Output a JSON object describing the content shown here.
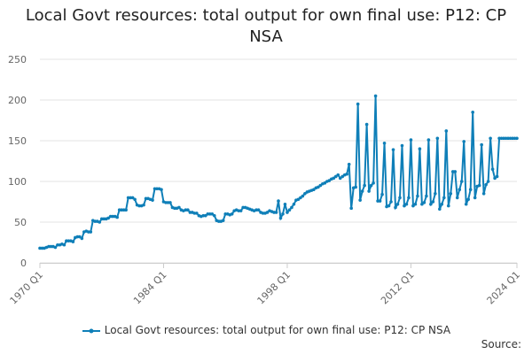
{
  "chart_data": {
    "type": "line",
    "title": "Local Govt resources: total output for own final use: P12: CP NSA",
    "source": "Source:",
    "categories": [
      "1970 Q1",
      null,
      null,
      null,
      null,
      null,
      null,
      null,
      null,
      null,
      null,
      null,
      null,
      null,
      null,
      null,
      null,
      null,
      null,
      null,
      null,
      null,
      null,
      null,
      null,
      null,
      null,
      null,
      null,
      null,
      null,
      null,
      null,
      null,
      null,
      null,
      null,
      null,
      null,
      null,
      null,
      null,
      null,
      null,
      null,
      null,
      null,
      null,
      null,
      null,
      null,
      null,
      null,
      null,
      null,
      null,
      "1984 Q1",
      null,
      null,
      null,
      null,
      null,
      null,
      null,
      null,
      null,
      null,
      null,
      null,
      null,
      null,
      null,
      null,
      null,
      null,
      null,
      null,
      null,
      null,
      null,
      null,
      null,
      null,
      null,
      null,
      null,
      null,
      null,
      null,
      null,
      null,
      null,
      null,
      null,
      null,
      null,
      null,
      null,
      null,
      null,
      null,
      null,
      null,
      null,
      null,
      null,
      null,
      null,
      null,
      null,
      null,
      null,
      "1998 Q1",
      null,
      null,
      null,
      null,
      null,
      null,
      null,
      null,
      null,
      null,
      null,
      null,
      null,
      null,
      null,
      null,
      null,
      null,
      null,
      null,
      null,
      null,
      null,
      null,
      null,
      null,
      null,
      null,
      null,
      null,
      null,
      null,
      null,
      null,
      null,
      null,
      null,
      null,
      null,
      null,
      null,
      null,
      null,
      null,
      null,
      null,
      null,
      null,
      null,
      null,
      null,
      null,
      null,
      null,
      null,
      "2012 Q1",
      null,
      null,
      null,
      null,
      null,
      null,
      null,
      null,
      null,
      null,
      null,
      null,
      null,
      null,
      null,
      null,
      null,
      null,
      null,
      null,
      null,
      null,
      null,
      null,
      null,
      null,
      null,
      null,
      null,
      null,
      null,
      null,
      null,
      null,
      null,
      null,
      null,
      null,
      null,
      null,
      null,
      null,
      null,
      null,
      null,
      null,
      null,
      "2024 Q1"
    ],
    "series": [
      {
        "name": "Local Govt resources: total output for own final use: P12: CP NSA",
        "color": "#0f7fb8",
        "values": [
          18,
          18,
          18,
          19,
          20,
          20,
          20,
          19,
          22,
          22,
          23,
          22,
          27,
          27,
          27,
          26,
          31,
          32,
          32,
          30,
          38,
          39,
          38,
          38,
          52,
          51,
          51,
          50,
          54,
          54,
          54,
          55,
          57,
          57,
          57,
          56,
          65,
          65,
          65,
          65,
          80,
          80,
          80,
          78,
          71,
          70,
          70,
          71,
          79,
          79,
          78,
          77,
          91,
          91,
          91,
          90,
          75,
          74,
          74,
          74,
          68,
          67,
          67,
          68,
          65,
          64,
          65,
          65,
          62,
          62,
          61,
          61,
          58,
          57,
          58,
          58,
          60,
          60,
          60,
          58,
          52,
          51,
          51,
          52,
          60,
          60,
          59,
          60,
          64,
          65,
          64,
          64,
          68,
          68,
          67,
          66,
          65,
          64,
          65,
          65,
          62,
          61,
          61,
          62,
          64,
          63,
          62,
          62,
          76,
          55,
          60,
          72,
          62,
          65,
          68,
          72,
          77,
          78,
          80,
          82,
          85,
          87,
          88,
          89,
          90,
          92,
          93,
          95,
          97,
          98,
          100,
          101,
          103,
          104,
          106,
          108,
          104,
          106,
          108,
          109,
          121,
          67,
          92,
          93,
          195,
          77,
          88,
          95,
          170,
          88,
          95,
          98,
          205,
          76,
          76,
          84,
          147,
          69,
          70,
          75,
          139,
          68,
          72,
          80,
          144,
          70,
          72,
          80,
          151,
          70,
          72,
          82,
          140,
          72,
          74,
          82,
          151,
          72,
          75,
          85,
          153,
          66,
          72,
          80,
          162,
          70,
          85,
          112,
          112,
          80,
          90,
          100,
          149,
          72,
          78,
          90,
          185,
          80,
          94,
          95,
          145,
          85,
          96,
          100,
          153,
          115,
          104,
          106,
          153,
          153,
          153,
          153,
          153,
          153,
          153,
          153,
          153
        ]
      }
    ],
    "ylim": [
      0,
      250
    ],
    "yticks": [
      0,
      50,
      100,
      150,
      200,
      250
    ],
    "grid": true
  }
}
